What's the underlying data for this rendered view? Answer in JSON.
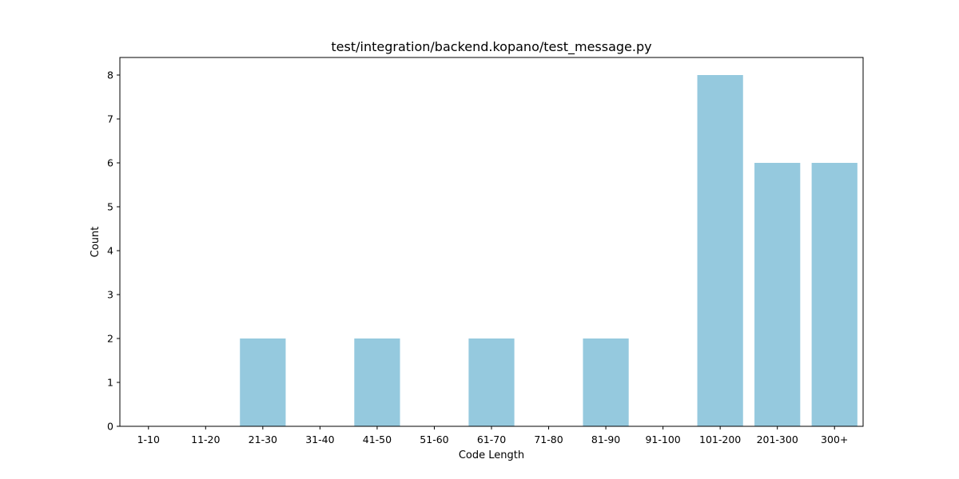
{
  "chart_data": {
    "type": "bar",
    "title": "test/integration/backend.kopano/test_message.py",
    "xlabel": "Code Length",
    "ylabel": "Count",
    "categories": [
      "1-10",
      "11-20",
      "21-30",
      "31-40",
      "41-50",
      "51-60",
      "61-70",
      "71-80",
      "81-90",
      "91-100",
      "101-200",
      "201-300",
      "300+"
    ],
    "values": [
      0,
      0,
      2,
      0,
      2,
      0,
      2,
      0,
      2,
      0,
      8,
      6,
      6
    ],
    "ylim": [
      0,
      8.4
    ],
    "yticks": [
      0,
      1,
      2,
      3,
      4,
      5,
      6,
      7,
      8
    ],
    "bar_color": "#95c9de",
    "grid": false,
    "legend": "none"
  }
}
